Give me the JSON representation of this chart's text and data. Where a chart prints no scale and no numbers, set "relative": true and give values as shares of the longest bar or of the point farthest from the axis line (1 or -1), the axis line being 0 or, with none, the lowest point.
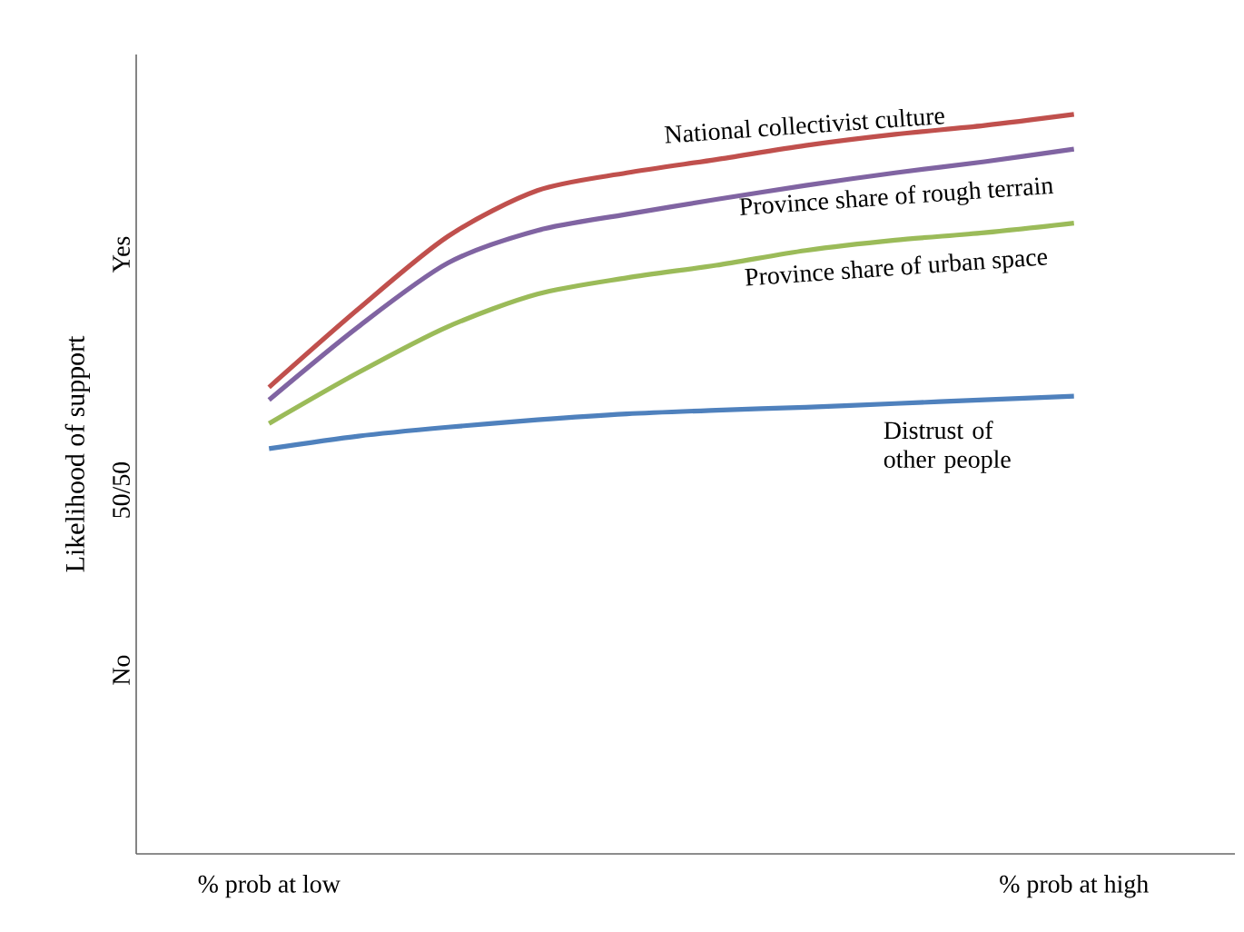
{
  "chart_data": {
    "type": "line",
    "ylabel": "Likelihood of support",
    "relative": true,
    "categories": [
      "% prob at low",
      null,
      null,
      null,
      null,
      null,
      null,
      null,
      null,
      "% prob at high"
    ],
    "annotations": [
      "Yes",
      "50/50",
      "No"
    ],
    "series": [
      {
        "name": "National collectivist culture",
        "color": "#c0504d",
        "values": [
          0.631,
          0.737,
          0.835,
          0.897,
          0.921,
          0.939,
          0.958,
          0.973,
          0.985,
          1
        ]
      },
      {
        "name": "Province share of rough terrain",
        "color": "#8064a2",
        "values": [
          0.614,
          0.713,
          0.799,
          0.843,
          0.865,
          0.885,
          0.904,
          0.921,
          0.936,
          0.953
        ]
      },
      {
        "name": "Province share of urban space",
        "color": "#9bbb59",
        "values": [
          0.582,
          0.651,
          0.713,
          0.757,
          0.779,
          0.796,
          0.816,
          0.83,
          0.84,
          0.853
        ]
      },
      {
        "name": "Distrust of other people",
        "color": "#4f81bd",
        "values": [
          0.548,
          0.565,
          0.577,
          0.587,
          0.595,
          0.6,
          0.604,
          0.609,
          0.614,
          0.619
        ]
      }
    ],
    "grid": false,
    "marker": "none",
    "line_style": "solid"
  }
}
